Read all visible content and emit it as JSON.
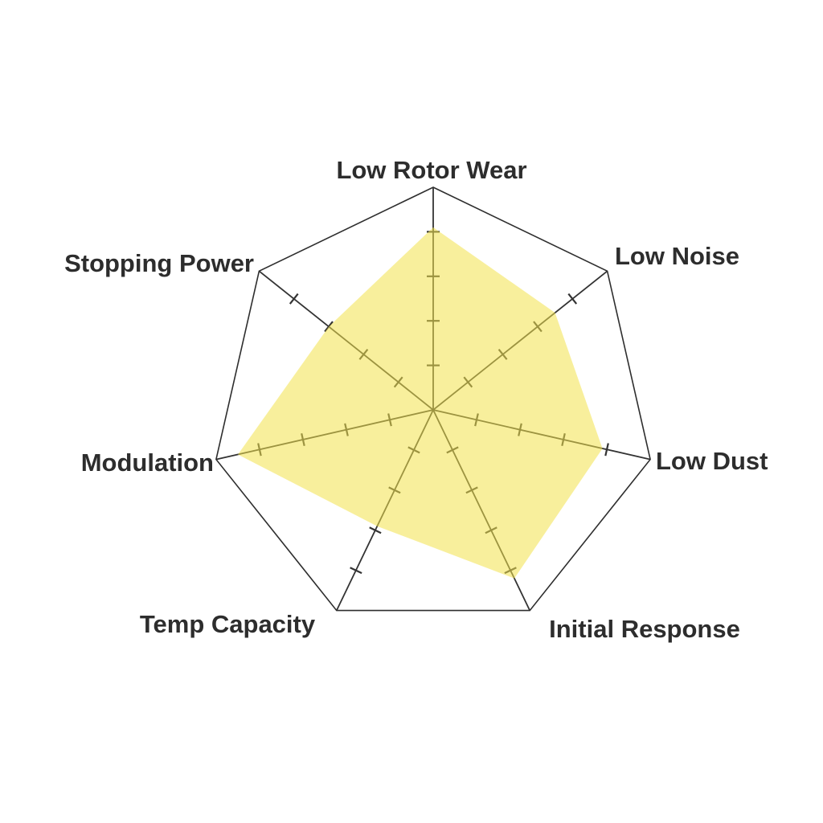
{
  "page": {
    "background_color": "#FFFFFF"
  },
  "chart_data": {
    "type": "radar",
    "title": "",
    "categories": [
      "Low Rotor Wear",
      "Low Noise",
      "Low Dust",
      "Initial Response",
      "Temp Capacity",
      "Modulation",
      "Stopping Power"
    ],
    "values": [
      4.1,
      3.5,
      3.9,
      4.2,
      2.9,
      4.5,
      3.0
    ],
    "scale_min": 0,
    "scale_max": 5,
    "axis_tick_values": [
      1,
      2,
      3,
      4
    ],
    "grid_style": "single outer heptagon ring, radial spokes with perpendicular tick marks, no numeric tick labels",
    "legend": "none",
    "fill_color": "#F3E24A",
    "fill_opacity": 0.55,
    "line_color": "#333333",
    "outline_color": "#2E2E2E",
    "label_color": "#2D2D2D"
  }
}
